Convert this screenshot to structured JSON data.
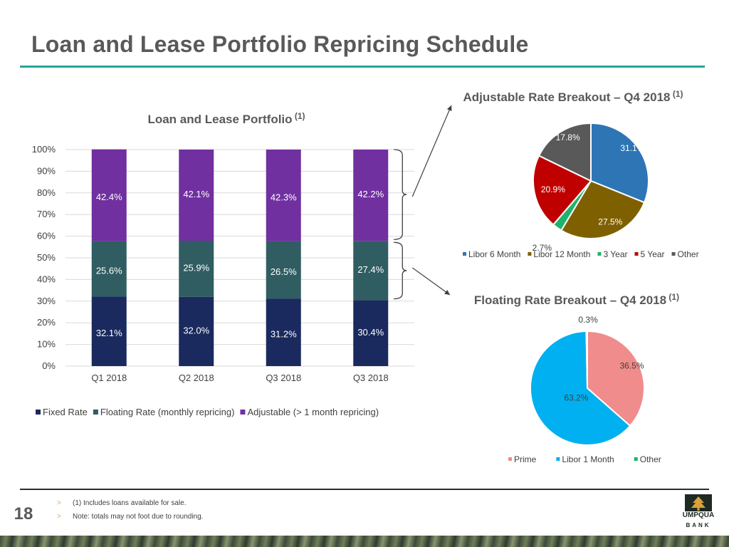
{
  "page": {
    "title": "Loan and Lease Portfolio Repricing Schedule",
    "page_number": "18",
    "notes": [
      {
        "marker": ">",
        "text": "(1) Includes loans available for sale."
      },
      {
        "marker": ">",
        "text": "Note: totals may not foot due to rounding."
      }
    ],
    "logo": {
      "word": "UMPQUA",
      "sub": "BANK"
    },
    "colors": {
      "accent_rule": "#26a69a",
      "footer_rule": "#2e2e2e"
    }
  },
  "chart_data": [
    {
      "type": "bar",
      "stacked": true,
      "title": "Loan and Lease Portfolio",
      "title_superscript": "(1)",
      "categories": [
        "Q1 2018",
        "Q2 2018",
        "Q3 2018",
        "Q3 2018"
      ],
      "ylim": [
        0,
        100
      ],
      "yticks": [
        "0%",
        "10%",
        "20%",
        "30%",
        "40%",
        "50%",
        "60%",
        "70%",
        "80%",
        "90%",
        "100%"
      ],
      "grid": true,
      "legend_position": "bottom",
      "series": [
        {
          "name": "Fixed Rate",
          "values": [
            32.1,
            32.0,
            31.2,
            30.4
          ],
          "labels": [
            "32.1%",
            "32.0%",
            "31.2%",
            "30.4%"
          ],
          "color": "#1a2a5e"
        },
        {
          "name": "Floating Rate (monthly repricing)",
          "values": [
            25.6,
            25.9,
            26.5,
            27.4
          ],
          "labels": [
            "25.6%",
            "25.9%",
            "26.5%",
            "27.4%"
          ],
          "color": "#2f5d62"
        },
        {
          "name": "Adjustable (> 1 month repricing)",
          "values": [
            42.4,
            42.1,
            42.3,
            42.2
          ],
          "labels": [
            "42.4%",
            "42.1%",
            "42.3%",
            "42.2%"
          ],
          "color": "#7030a0"
        }
      ]
    },
    {
      "type": "pie",
      "title": "Adjustable Rate Breakout – Q4 2018",
      "title_superscript": "(1)",
      "legend_position": "bottom",
      "slices": [
        {
          "name": "Libor 6 Month",
          "value": 31.1,
          "label": "31.1%",
          "color": "#2e75b6"
        },
        {
          "name": "Libor 12 Month",
          "value": 27.5,
          "label": "27.5%",
          "color": "#7f6000"
        },
        {
          "name": "3 Year",
          "value": 2.7,
          "label": "2.7%",
          "color": "#21b36b"
        },
        {
          "name": "5 Year",
          "value": 20.9,
          "label": "20.9%",
          "color": "#c00000"
        },
        {
          "name": "Other",
          "value": 17.8,
          "label": "17.8%",
          "color": "#595959"
        }
      ]
    },
    {
      "type": "pie",
      "title": "Floating Rate Breakout – Q4 2018",
      "title_superscript": "(1)",
      "legend_position": "bottom",
      "slices": [
        {
          "name": "Prime",
          "value": 36.5,
          "label": "36.5%",
          "color": "#f08c8c"
        },
        {
          "name": "Libor 1 Month",
          "value": 63.2,
          "label": "63.2%",
          "color": "#00b0f0"
        },
        {
          "name": "Other",
          "value": 0.3,
          "label": "0.3%",
          "color": "#21b36b"
        }
      ]
    }
  ]
}
